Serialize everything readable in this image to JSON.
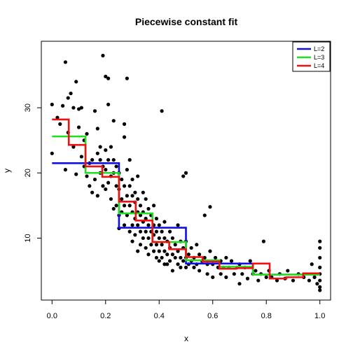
{
  "chart_data": {
    "type": "line",
    "title": "Piecewise constant fit",
    "xlabel": "x",
    "ylabel": "y",
    "xlim": [
      -0.04,
      1.04
    ],
    "ylim": [
      0.5,
      40.2
    ],
    "x_ticks": [
      0.0,
      0.2,
      0.4,
      0.6,
      0.8,
      1.0
    ],
    "x_tick_labels": [
      "0.0",
      "0.2",
      "0.4",
      "0.6",
      "0.8",
      "1.0"
    ],
    "y_ticks": [
      10,
      20,
      30
    ],
    "y_tick_labels": [
      "10",
      "20",
      "30"
    ],
    "grid": false,
    "legend_position": "top-right",
    "scatter_color": "#000000",
    "series": [
      {
        "name": "L=2",
        "color": "#1010e0",
        "steps": [
          {
            "x0": 0.0,
            "x1": 0.25,
            "y": 21.5
          },
          {
            "x0": 0.25,
            "x1": 0.5,
            "y": 11.6
          },
          {
            "x0": 0.5,
            "x1": 0.75,
            "y": 6.1
          },
          {
            "x0": 0.75,
            "x1": 1.0,
            "y": 4.4
          }
        ]
      },
      {
        "name": "L=3",
        "color": "#22dd22",
        "steps": [
          {
            "x0": 0.0,
            "x1": 0.125,
            "y": 25.6
          },
          {
            "x0": 0.125,
            "x1": 0.25,
            "y": 20.0
          },
          {
            "x0": 0.25,
            "x1": 0.375,
            "y": 13.8
          },
          {
            "x0": 0.375,
            "x1": 0.5,
            "y": 9.4
          },
          {
            "x0": 0.5,
            "x1": 0.625,
            "y": 6.6
          },
          {
            "x0": 0.625,
            "x1": 0.75,
            "y": 5.6
          },
          {
            "x0": 0.75,
            "x1": 0.875,
            "y": 4.4
          },
          {
            "x0": 0.875,
            "x1": 1.0,
            "y": 4.4
          }
        ]
      },
      {
        "name": "L=4",
        "color": "#ee1111",
        "steps": [
          {
            "x0": 0.0,
            "x1": 0.0625,
            "y": 28.2
          },
          {
            "x0": 0.0625,
            "x1": 0.125,
            "y": 24.3
          },
          {
            "x0": 0.125,
            "x1": 0.1875,
            "y": 21.0
          },
          {
            "x0": 0.1875,
            "x1": 0.25,
            "y": 19.4
          },
          {
            "x0": 0.25,
            "x1": 0.3125,
            "y": 15.6
          },
          {
            "x0": 0.3125,
            "x1": 0.375,
            "y": 12.7
          },
          {
            "x0": 0.375,
            "x1": 0.4375,
            "y": 9.4
          },
          {
            "x0": 0.4375,
            "x1": 0.5,
            "y": 8.3
          },
          {
            "x0": 0.5,
            "x1": 0.5625,
            "y": 7.1
          },
          {
            "x0": 0.5625,
            "x1": 0.625,
            "y": 6.4
          },
          {
            "x0": 0.625,
            "x1": 0.6875,
            "y": 5.3
          },
          {
            "x0": 0.6875,
            "x1": 0.75,
            "y": 5.4
          },
          {
            "x0": 0.75,
            "x1": 0.8125,
            "y": 6.1
          },
          {
            "x0": 0.8125,
            "x1": 0.875,
            "y": 3.8
          },
          {
            "x0": 0.875,
            "x1": 0.9375,
            "y": 4.0
          },
          {
            "x0": 0.9375,
            "x1": 1.0,
            "y": 4.6
          }
        ]
      }
    ],
    "points": [
      [
        0.0,
        23.0
      ],
      [
        0.0,
        30.5
      ],
      [
        0.02,
        28.5
      ],
      [
        0.03,
        27.5
      ],
      [
        0.04,
        30.3
      ],
      [
        0.05,
        37.0
      ],
      [
        0.05,
        20.5
      ],
      [
        0.06,
        31.5
      ],
      [
        0.06,
        26.2
      ],
      [
        0.07,
        32.2
      ],
      [
        0.08,
        30.0
      ],
      [
        0.08,
        24.0
      ],
      [
        0.09,
        34.0
      ],
      [
        0.09,
        19.8
      ],
      [
        0.1,
        27.0
      ],
      [
        0.1,
        29.8
      ],
      [
        0.11,
        22.5
      ],
      [
        0.11,
        30.0
      ],
      [
        0.12,
        25.0
      ],
      [
        0.12,
        21.0
      ],
      [
        0.13,
        26.0
      ],
      [
        0.13,
        19.5
      ],
      [
        0.14,
        18.0
      ],
      [
        0.14,
        21.5
      ],
      [
        0.15,
        22.0
      ],
      [
        0.15,
        17.0
      ],
      [
        0.16,
        29.5
      ],
      [
        0.16,
        19.0
      ],
      [
        0.17,
        23.0
      ],
      [
        0.17,
        26.8
      ],
      [
        0.17,
        16.5
      ],
      [
        0.18,
        22.0
      ],
      [
        0.18,
        20.0
      ],
      [
        0.18,
        24.0
      ],
      [
        0.19,
        38.0
      ],
      [
        0.19,
        21.0
      ],
      [
        0.19,
        18.0
      ],
      [
        0.2,
        34.8
      ],
      [
        0.2,
        23.5
      ],
      [
        0.2,
        20.5
      ],
      [
        0.2,
        17.5
      ],
      [
        0.21,
        30.5
      ],
      [
        0.21,
        34.5
      ],
      [
        0.21,
        22.0
      ],
      [
        0.21,
        18.5
      ],
      [
        0.22,
        24.0
      ],
      [
        0.22,
        19.5
      ],
      [
        0.22,
        16.0
      ],
      [
        0.23,
        22.0
      ],
      [
        0.23,
        28.0
      ],
      [
        0.23,
        20.0
      ],
      [
        0.23,
        14.5
      ],
      [
        0.24,
        21.0
      ],
      [
        0.24,
        18.0
      ],
      [
        0.24,
        15.0
      ],
      [
        0.25,
        20.0
      ],
      [
        0.25,
        17.5
      ],
      [
        0.25,
        13.5
      ],
      [
        0.25,
        11.5
      ],
      [
        0.26,
        19.0
      ],
      [
        0.26,
        16.0
      ],
      [
        0.26,
        14.0
      ],
      [
        0.27,
        27.5
      ],
      [
        0.27,
        25.5
      ],
      [
        0.27,
        18.0
      ],
      [
        0.27,
        15.0
      ],
      [
        0.27,
        12.0
      ],
      [
        0.28,
        34.5
      ],
      [
        0.28,
        20.5
      ],
      [
        0.28,
        16.5
      ],
      [
        0.28,
        13.5
      ],
      [
        0.29,
        22.0
      ],
      [
        0.29,
        18.0
      ],
      [
        0.29,
        15.0
      ],
      [
        0.29,
        11.0
      ],
      [
        0.3,
        19.0
      ],
      [
        0.3,
        16.5
      ],
      [
        0.3,
        14.0
      ],
      [
        0.3,
        12.0
      ],
      [
        0.3,
        9.5
      ],
      [
        0.31,
        17.0
      ],
      [
        0.31,
        15.5
      ],
      [
        0.31,
        13.0
      ],
      [
        0.31,
        10.5
      ],
      [
        0.32,
        19.5
      ],
      [
        0.32,
        16.0
      ],
      [
        0.32,
        14.0
      ],
      [
        0.32,
        12.0
      ],
      [
        0.32,
        8.0
      ],
      [
        0.33,
        15.0
      ],
      [
        0.33,
        13.5
      ],
      [
        0.33,
        11.0
      ],
      [
        0.33,
        9.0
      ],
      [
        0.34,
        17.0
      ],
      [
        0.34,
        14.0
      ],
      [
        0.34,
        12.5
      ],
      [
        0.34,
        10.0
      ],
      [
        0.35,
        16.0
      ],
      [
        0.35,
        13.0
      ],
      [
        0.35,
        11.0
      ],
      [
        0.35,
        8.5
      ],
      [
        0.36,
        14.5
      ],
      [
        0.36,
        12.0
      ],
      [
        0.36,
        10.0
      ],
      [
        0.36,
        7.5
      ],
      [
        0.37,
        13.5
      ],
      [
        0.37,
        11.0
      ],
      [
        0.37,
        9.0
      ],
      [
        0.38,
        15.0
      ],
      [
        0.38,
        12.0
      ],
      [
        0.38,
        10.5
      ],
      [
        0.38,
        8.0
      ],
      [
        0.39,
        13.0
      ],
      [
        0.39,
        11.0
      ],
      [
        0.39,
        9.0
      ],
      [
        0.39,
        7.0
      ],
      [
        0.4,
        12.0
      ],
      [
        0.4,
        10.0
      ],
      [
        0.4,
        8.0
      ],
      [
        0.4,
        6.5
      ],
      [
        0.41,
        29.5
      ],
      [
        0.41,
        11.0
      ],
      [
        0.41,
        9.0
      ],
      [
        0.41,
        7.0
      ],
      [
        0.42,
        12.5
      ],
      [
        0.42,
        10.0
      ],
      [
        0.42,
        8.0
      ],
      [
        0.42,
        6.0
      ],
      [
        0.43,
        9.5
      ],
      [
        0.43,
        7.5
      ],
      [
        0.43,
        6.0
      ],
      [
        0.44,
        11.0
      ],
      [
        0.44,
        8.5
      ],
      [
        0.44,
        6.5
      ],
      [
        0.45,
        10.0
      ],
      [
        0.45,
        7.5
      ],
      [
        0.45,
        5.0
      ],
      [
        0.46,
        9.0
      ],
      [
        0.46,
        7.0
      ],
      [
        0.47,
        12.0
      ],
      [
        0.47,
        8.0
      ],
      [
        0.47,
        6.0
      ],
      [
        0.48,
        9.5
      ],
      [
        0.48,
        7.0
      ],
      [
        0.48,
        5.5
      ],
      [
        0.49,
        19.5
      ],
      [
        0.49,
        8.5
      ],
      [
        0.49,
        6.5
      ],
      [
        0.5,
        20.0
      ],
      [
        0.5,
        9.5
      ],
      [
        0.5,
        7.0
      ],
      [
        0.5,
        5.5
      ],
      [
        0.51,
        7.5
      ],
      [
        0.51,
        6.0
      ],
      [
        0.52,
        8.5
      ],
      [
        0.52,
        6.5
      ],
      [
        0.53,
        7.0
      ],
      [
        0.53,
        5.5
      ],
      [
        0.54,
        9.0
      ],
      [
        0.54,
        6.0
      ],
      [
        0.55,
        7.5
      ],
      [
        0.55,
        5.0
      ],
      [
        0.56,
        6.5
      ],
      [
        0.57,
        13.5
      ],
      [
        0.57,
        7.0
      ],
      [
        0.58,
        6.0
      ],
      [
        0.58,
        4.5
      ],
      [
        0.59,
        14.8
      ],
      [
        0.59,
        8.0
      ],
      [
        0.6,
        6.0
      ],
      [
        0.6,
        4.0
      ],
      [
        0.61,
        7.0
      ],
      [
        0.62,
        5.5
      ],
      [
        0.63,
        6.5
      ],
      [
        0.63,
        4.5
      ],
      [
        0.64,
        5.5
      ],
      [
        0.65,
        7.0
      ],
      [
        0.65,
        4.0
      ],
      [
        0.66,
        5.5
      ],
      [
        0.67,
        6.5
      ],
      [
        0.68,
        4.5
      ],
      [
        0.69,
        5.5
      ],
      [
        0.7,
        3.0
      ],
      [
        0.7,
        6.0
      ],
      [
        0.71,
        4.5
      ],
      [
        0.72,
        5.5
      ],
      [
        0.73,
        3.8
      ],
      [
        0.74,
        6.5
      ],
      [
        0.75,
        4.5
      ],
      [
        0.76,
        5.0
      ],
      [
        0.77,
        3.5
      ],
      [
        0.78,
        4.5
      ],
      [
        0.79,
        9.5
      ],
      [
        0.8,
        4.0
      ],
      [
        0.81,
        5.0
      ],
      [
        0.82,
        4.0
      ],
      [
        0.84,
        3.5
      ],
      [
        0.85,
        4.5
      ],
      [
        0.87,
        3.8
      ],
      [
        0.88,
        5.0
      ],
      [
        0.9,
        3.5
      ],
      [
        0.92,
        4.5
      ],
      [
        0.94,
        4.0
      ],
      [
        0.96,
        3.5
      ],
      [
        0.97,
        6.0
      ],
      [
        0.98,
        4.0
      ],
      [
        0.99,
        3.0
      ],
      [
        1.0,
        9.5
      ],
      [
        1.0,
        8.5
      ],
      [
        1.0,
        7.0
      ],
      [
        1.0,
        5.5
      ],
      [
        1.0,
        4.5
      ],
      [
        1.0,
        3.5
      ],
      [
        1.0,
        2.5
      ],
      [
        1.0,
        2.0
      ]
    ]
  }
}
